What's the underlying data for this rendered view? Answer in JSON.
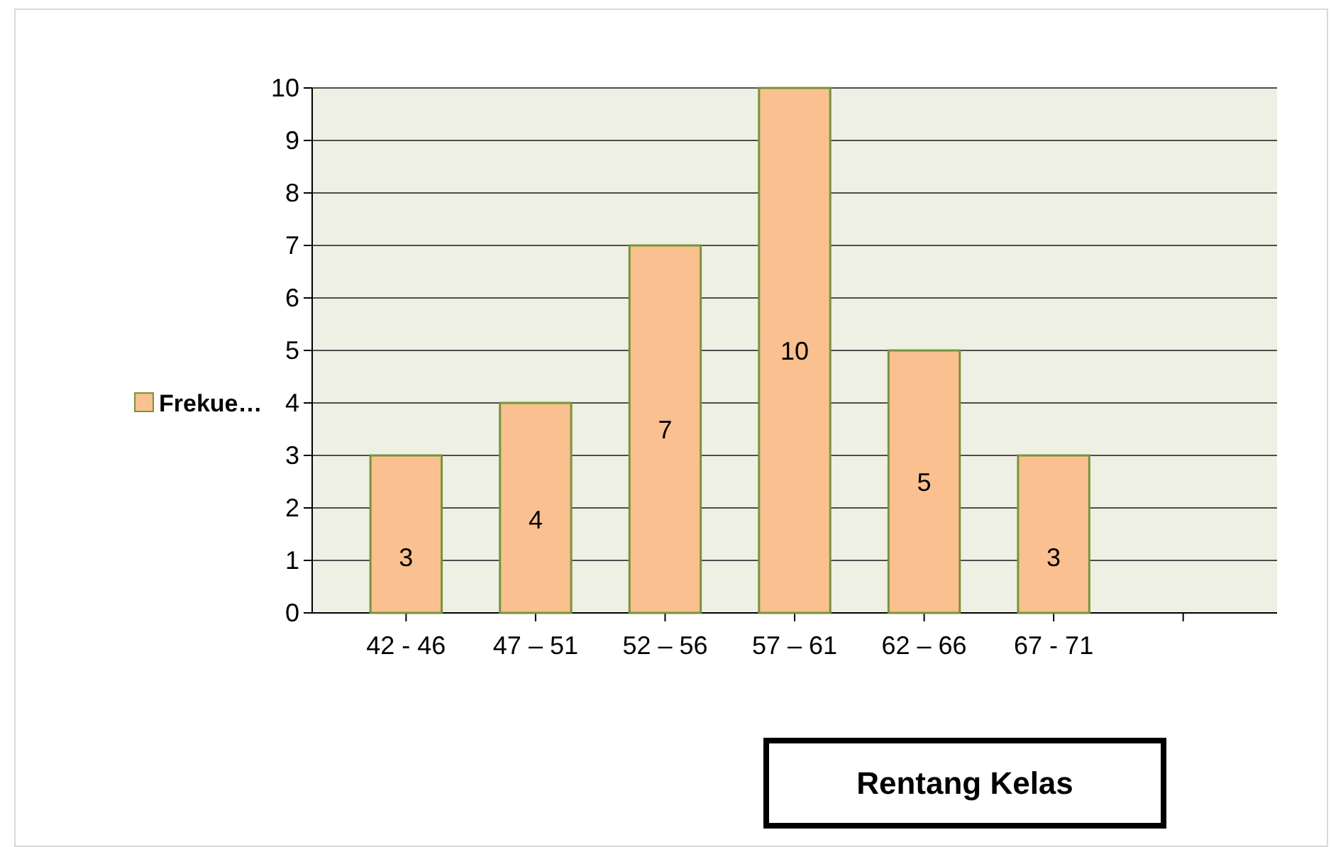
{
  "chart_data": {
    "type": "bar",
    "xlabel": "Rentang Kelas",
    "categories": [
      "42 - 46",
      "47 – 51",
      "52 – 56",
      "57 – 61",
      "62 – 66",
      "67 - 71",
      null
    ],
    "series": [
      {
        "name": "Frekue…",
        "color": "#fac090",
        "values": [
          3,
          4,
          7,
          10,
          5,
          3,
          null
        ]
      }
    ],
    "ylim": [
      0,
      10
    ],
    "yticks": [
      0,
      1,
      2,
      3,
      4,
      5,
      6,
      7,
      8,
      9,
      10
    ],
    "grid": "y",
    "legend": "left",
    "data_labels": true
  }
}
